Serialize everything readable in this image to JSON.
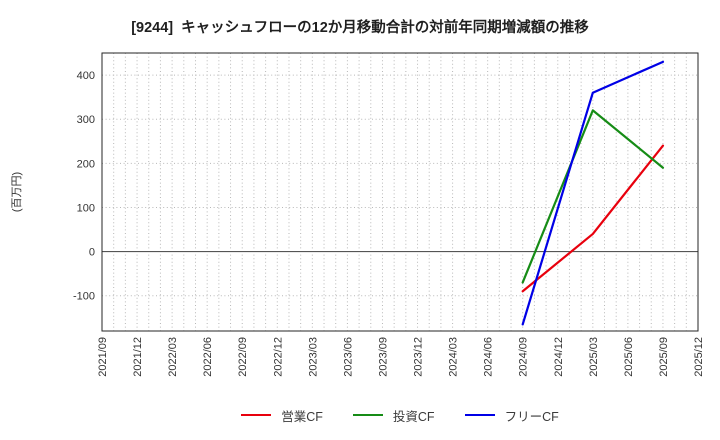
{
  "theme": {
    "background": "#ffffff",
    "grid": "#b8b8b8",
    "zero_line": "#555555",
    "spine": "#262626",
    "tick_text": "#333333",
    "title_text": "#1f1f1f",
    "legend_text": "#3a3a3a"
  },
  "chart_data": {
    "type": "line",
    "title": "[9244]  キャッシュフローの12か月移動合計の対前年同期増減額の推移",
    "xlabel": "",
    "ylabel": "(百万円)",
    "x_labels": [
      "2021/09",
      "2021/12",
      "2022/03",
      "2022/06",
      "2022/09",
      "2022/12",
      "2023/03",
      "2023/06",
      "2023/09",
      "2023/12",
      "2024/03",
      "2024/06",
      "2024/09",
      "2024/12",
      "2025/03",
      "2025/06",
      "2025/09",
      "2025/12"
    ],
    "yticks": [
      -100,
      0,
      100,
      200,
      300,
      400
    ],
    "ylim": [
      -180,
      450
    ],
    "grid": true,
    "legend_position": "bottom-center",
    "series": [
      {
        "name": "営業CF",
        "color": "#e8000d",
        "points": [
          {
            "x": "2024/09",
            "y": -90
          },
          {
            "x": "2025/03",
            "y": 40
          },
          {
            "x": "2025/09",
            "y": 240
          }
        ]
      },
      {
        "name": "投資CF",
        "color": "#168c16",
        "points": [
          {
            "x": "2024/09",
            "y": -70
          },
          {
            "x": "2025/03",
            "y": 320
          },
          {
            "x": "2025/09",
            "y": 190
          }
        ]
      },
      {
        "name": "フリーCF",
        "color": "#0000e6",
        "points": [
          {
            "x": "2024/09",
            "y": -165
          },
          {
            "x": "2025/03",
            "y": 360
          },
          {
            "x": "2025/09",
            "y": 430
          }
        ]
      }
    ]
  }
}
